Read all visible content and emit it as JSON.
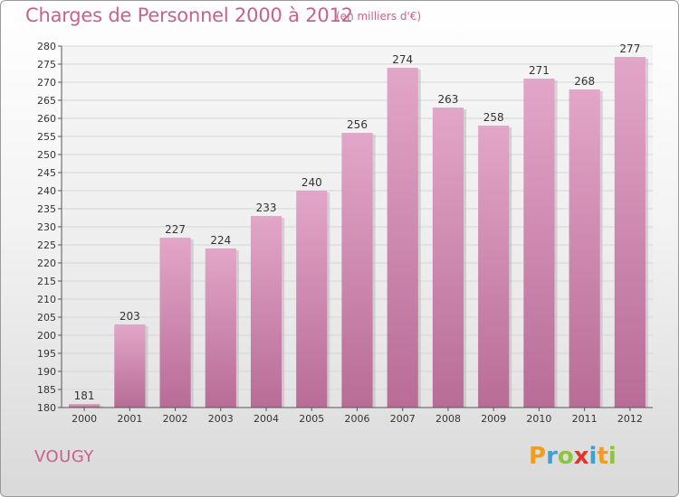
{
  "header": {
    "title": "Charges de Personnel 2000 à 2012",
    "subtitle": "(en milliers d'€)"
  },
  "footer": {
    "place": "VOUGY",
    "logo": {
      "letters": [
        "P",
        "r",
        "o",
        "x",
        "i",
        "t",
        "i"
      ],
      "text": "Proxiti"
    }
  },
  "colors": {
    "bar": "#c97fa8",
    "bar_light": "#e2a6c8",
    "bar_dark": "#b86c96",
    "title": "#c7628d",
    "grid": "#d6d6d6"
  },
  "chart_data": {
    "type": "bar",
    "title": "Charges de Personnel 2000 à 2012",
    "subtitle": "(en milliers d'€)",
    "categories": [
      "2000",
      "2001",
      "2002",
      "2003",
      "2004",
      "2005",
      "2006",
      "2007",
      "2008",
      "2009",
      "2010",
      "2011",
      "2012"
    ],
    "values": [
      181,
      203,
      227,
      224,
      233,
      240,
      256,
      274,
      263,
      258,
      271,
      268,
      277
    ],
    "ylim": [
      180,
      280
    ],
    "yticks": [
      180,
      185,
      190,
      195,
      200,
      205,
      210,
      215,
      220,
      225,
      230,
      235,
      240,
      245,
      250,
      255,
      260,
      265,
      270,
      275,
      280
    ],
    "grid": true
  }
}
